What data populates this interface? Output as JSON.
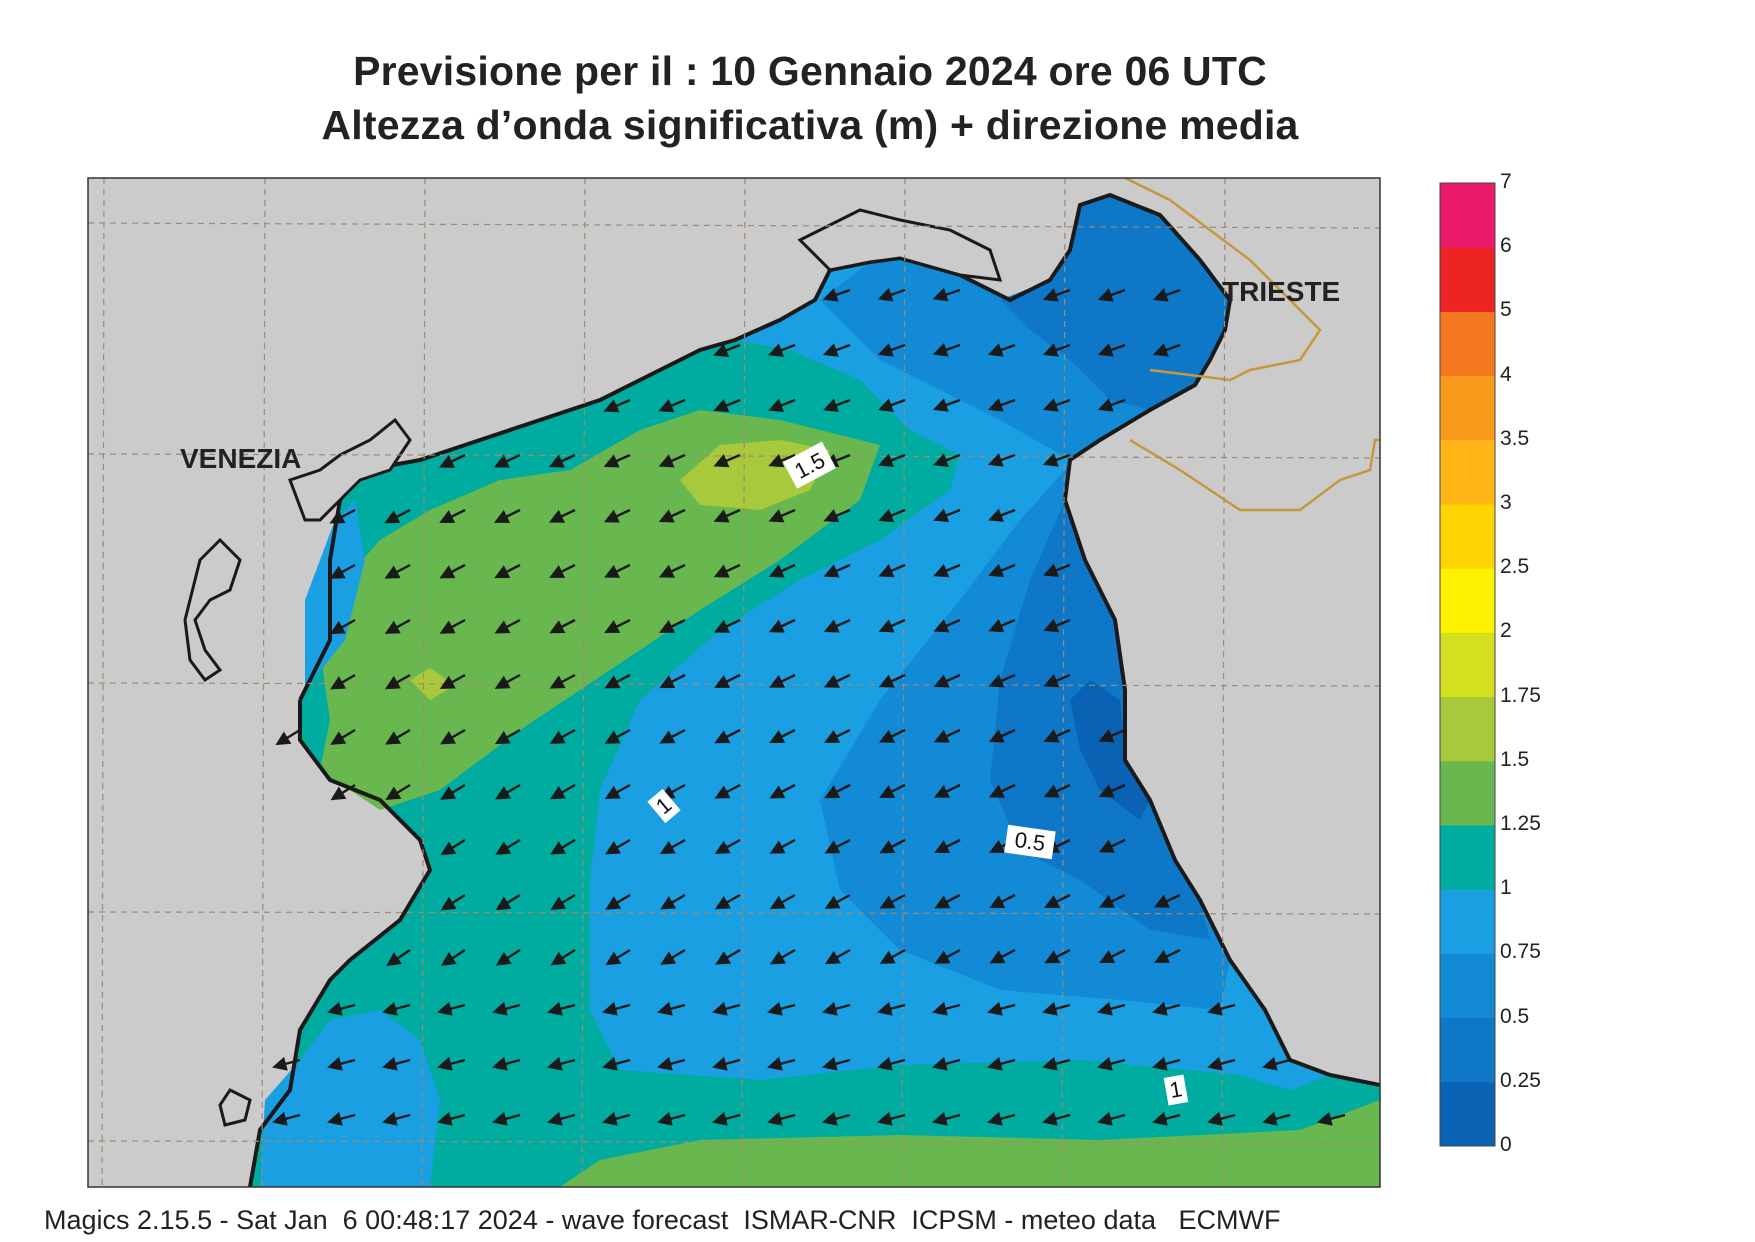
{
  "title_line1": "Previsione per il  :  10  Gennaio  2024   ore 06 UTC",
  "title_line2": "Altezza d’onda significativa (m) + direzione media",
  "footer": "Magics 2.15.5 - Sat Jan  6 00:48:17 2024 - wave forecast  ISMAR-CNR  ICPSM - meteo data   ECMWF",
  "places": [
    {
      "name": "VENEZIA"
    },
    {
      "name": "TRIESTE"
    }
  ],
  "contour_labels": [
    "1.5",
    "1",
    "0.5",
    "1"
  ],
  "colorbar": {
    "labels": [
      "0",
      "0.25",
      "0.5",
      "0.75",
      "1",
      "1.25",
      "1.5",
      "1.75",
      "2",
      "2.5",
      "3",
      "3.5",
      "4",
      "5",
      "6",
      "7"
    ],
    "colors": [
      "#0a62b5",
      "#0e77c8",
      "#138ad6",
      "#1aa0e2",
      "#00aba0",
      "#69b84f",
      "#a7c93b",
      "#d4df20",
      "#fff200",
      "#ffd400",
      "#ffb516",
      "#f99a1c",
      "#f47920",
      "#ee2424",
      "#ea1a6a"
    ]
  },
  "colors": {
    "land": "#cbcbcb",
    "coast": "#1a1a1a",
    "border": "#c8963c",
    "grid": "#a08a70",
    "arrow": "#1a1a1a"
  }
}
